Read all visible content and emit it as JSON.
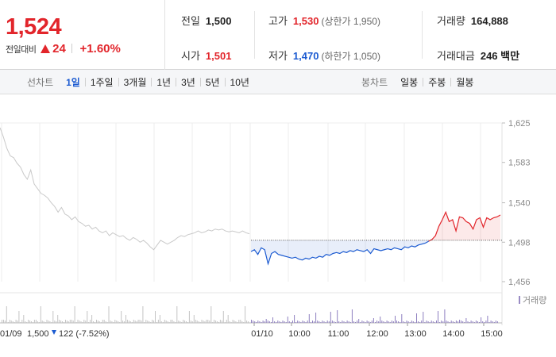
{
  "price": {
    "current": "1,524",
    "change_label": "전일대비",
    "change_icon": "up-triangle-icon",
    "change": "24",
    "change_pct": "+1.60%",
    "up_color": "#e2252b",
    "down_color": "#1c5bd1"
  },
  "stats": {
    "prev_close": {
      "label": "전일",
      "value": "1,500"
    },
    "open": {
      "label": "시가",
      "value": "1,501"
    },
    "high": {
      "label": "고가",
      "value": "1,530",
      "sub": "(상한가 1,950)"
    },
    "low": {
      "label": "저가",
      "value": "1,470",
      "sub": "(하한가 1,050)"
    },
    "volume": {
      "label": "거래량",
      "value": "164,888"
    },
    "amount": {
      "label": "거래대금",
      "value": "246 백만"
    }
  },
  "tabs": {
    "line_title": "선차트",
    "line_tabs": [
      "1일",
      "1주일",
      "3개월",
      "1년",
      "3년",
      "5년",
      "10년"
    ],
    "active": "1일",
    "candle_title": "봉차트",
    "candle_tabs": [
      "일봉",
      "주봉",
      "월봉"
    ]
  },
  "chart_data": {
    "type": "line",
    "y_ticks": [
      "1,625",
      "1,583",
      "1,540",
      "1,498",
      "1,456"
    ],
    "ylim": [
      1456,
      1625
    ],
    "reference": 1500,
    "x_ticks": [
      "01/10",
      "10:00",
      "11:00",
      "12:00",
      "13:00",
      "14:00",
      "15:00"
    ],
    "prev_day": {
      "date": "01/09",
      "close": "1,500",
      "change_icon": "down-triangle-icon",
      "change": "122 (-7.52%)",
      "values": [
        1620,
        1610,
        1598,
        1590,
        1588,
        1582,
        1578,
        1570,
        1565,
        1575,
        1560,
        1555,
        1550,
        1548,
        1545,
        1540,
        1536,
        1530,
        1535,
        1528,
        1526,
        1522,
        1525,
        1520,
        1518,
        1515,
        1516,
        1512,
        1514,
        1510,
        1508,
        1510,
        1505,
        1508,
        1506,
        1504,
        1505,
        1502,
        1500,
        1503,
        1501,
        1498,
        1500,
        1497,
        1493,
        1490,
        1495,
        1500,
        1498,
        1496,
        1498,
        1500,
        1503,
        1505,
        1504,
        1506,
        1507,
        1508,
        1510,
        1508,
        1509,
        1511,
        1510,
        1512,
        1511,
        1512,
        1510,
        1509,
        1510,
        1509,
        1508,
        1510,
        1508,
        1507
      ]
    },
    "today": {
      "values": [
        1488,
        1490,
        1485,
        1492,
        1490,
        1475,
        1486,
        1488,
        1485,
        1484,
        1483,
        1482,
        1481,
        1482,
        1480,
        1479,
        1481,
        1480,
        1482,
        1481,
        1483,
        1482,
        1485,
        1484,
        1486,
        1487,
        1486,
        1488,
        1487,
        1489,
        1488,
        1490,
        1489,
        1488,
        1490,
        1486,
        1491,
        1490,
        1489,
        1490,
        1491,
        1490,
        1492,
        1491,
        1490,
        1493,
        1492,
        1494,
        1493,
        1495,
        1496,
        1497,
        1499,
        1501,
        1505,
        1515,
        1522,
        1530,
        1520,
        1522,
        1510,
        1525,
        1524,
        1520,
        1518,
        1512,
        1522,
        1524,
        1514,
        1524,
        1522,
        1524,
        1525,
        1527
      ],
      "close_marker": 1524
    },
    "volume_legend": "거래량"
  }
}
